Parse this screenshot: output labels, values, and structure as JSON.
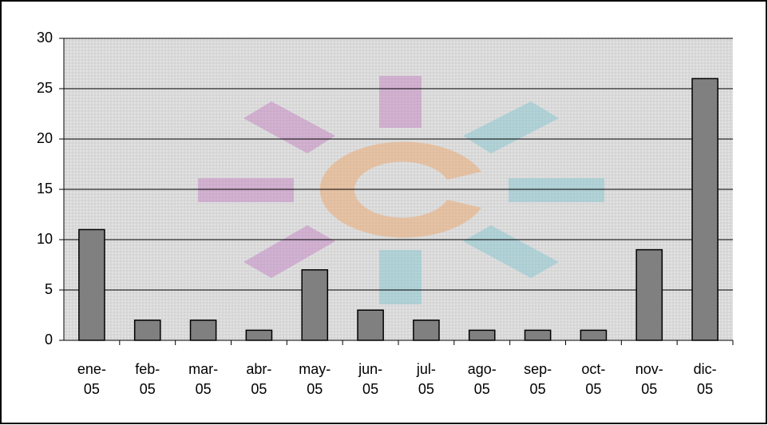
{
  "chart_data": {
    "type": "bar",
    "categories": [
      "ene-05",
      "feb-05",
      "mar-05",
      "abr-05",
      "may-05",
      "jun-05",
      "jul-05",
      "ago-05",
      "sep-05",
      "oct-05",
      "nov-05",
      "dic-05"
    ],
    "values": [
      11,
      2,
      2,
      1,
      7,
      3,
      2,
      1,
      1,
      1,
      9,
      26
    ],
    "color": "#808080",
    "ylim": [
      0,
      30
    ],
    "yticks": [
      0,
      5,
      10,
      15,
      20,
      25,
      30
    ],
    "grid": true
  }
}
